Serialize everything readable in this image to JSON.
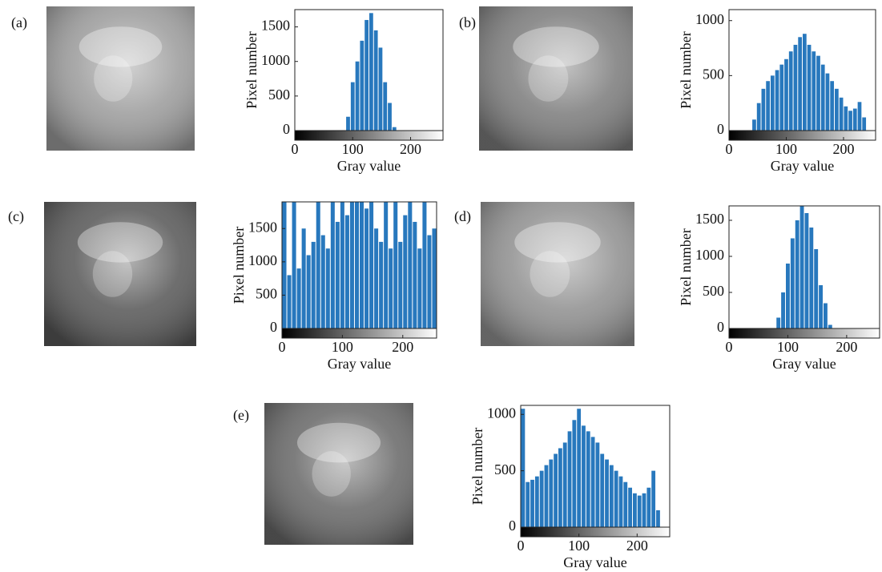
{
  "chart_data": [
    {
      "type": "histogram",
      "panel_label": "(a)",
      "xlabel": "Gray value",
      "ylabel": "Pixel number",
      "color": "#2878bd",
      "bins": [
        0,
        8,
        16,
        24,
        32,
        40,
        48,
        56,
        64,
        72,
        80,
        88,
        96,
        104,
        112,
        120,
        128,
        136,
        144,
        152,
        160,
        168,
        176,
        184,
        192,
        200,
        208,
        216,
        224,
        232,
        240,
        248,
        256
      ],
      "values": [
        0,
        0,
        0,
        0,
        0,
        0,
        0,
        0,
        0,
        0,
        0,
        200,
        700,
        1000,
        1300,
        1600,
        1700,
        1450,
        1200,
        700,
        400,
        50,
        0,
        0,
        0,
        0,
        0,
        0,
        0,
        0,
        0,
        0
      ],
      "xlim": [
        0,
        256
      ],
      "xticks": [
        0,
        100,
        200
      ],
      "ylim": [
        0,
        1750
      ],
      "yticks": [
        0,
        500,
        1000,
        1500
      ]
    },
    {
      "type": "histogram",
      "panel_label": "(b)",
      "xlabel": "Gray value",
      "ylabel": "Pixel number",
      "color": "#2878bd",
      "bins": [
        0,
        8,
        16,
        24,
        32,
        40,
        48,
        56,
        64,
        72,
        80,
        88,
        96,
        104,
        112,
        120,
        128,
        136,
        144,
        152,
        160,
        168,
        176,
        184,
        192,
        200,
        208,
        216,
        224,
        232,
        240,
        248,
        256
      ],
      "values": [
        0,
        0,
        0,
        0,
        0,
        100,
        250,
        380,
        450,
        500,
        550,
        600,
        650,
        720,
        780,
        850,
        880,
        780,
        720,
        680,
        600,
        520,
        450,
        380,
        300,
        220,
        180,
        200,
        260,
        120,
        0,
        0
      ],
      "xlim": [
        0,
        256
      ],
      "xticks": [
        0,
        100,
        200
      ],
      "ylim": [
        0,
        1100
      ],
      "yticks": [
        0,
        500,
        1000
      ]
    },
    {
      "type": "histogram",
      "panel_label": "(c)",
      "xlabel": "Gray value",
      "ylabel": "Pixel number",
      "color": "#2878bd",
      "bins": [
        0,
        8,
        16,
        24,
        32,
        40,
        48,
        56,
        64,
        72,
        80,
        88,
        96,
        104,
        112,
        120,
        128,
        136,
        144,
        152,
        160,
        168,
        176,
        184,
        192,
        200,
        208,
        216,
        224,
        232,
        240,
        248,
        256
      ],
      "values": [
        1900,
        800,
        1900,
        900,
        1500,
        1100,
        1300,
        1900,
        1400,
        1200,
        1900,
        1600,
        1900,
        1700,
        1900,
        1900,
        1900,
        1800,
        1900,
        1500,
        1300,
        1900,
        1200,
        1900,
        1300,
        1700,
        1900,
        1600,
        1200,
        1900,
        1400,
        1500
      ],
      "xlim": [
        0,
        256
      ],
      "xticks": [
        0,
        100,
        200
      ],
      "ylim": [
        0,
        1900
      ],
      "yticks": [
        0,
        500,
        1000,
        1500
      ]
    },
    {
      "type": "histogram",
      "panel_label": "(d)",
      "xlabel": "Gray value",
      "ylabel": "Pixel number",
      "color": "#2878bd",
      "bins": [
        0,
        8,
        16,
        24,
        32,
        40,
        48,
        56,
        64,
        72,
        80,
        88,
        96,
        104,
        112,
        120,
        128,
        136,
        144,
        152,
        160,
        168,
        176,
        184,
        192,
        200,
        208,
        216,
        224,
        232,
        240,
        248,
        256
      ],
      "values": [
        0,
        0,
        0,
        0,
        0,
        0,
        0,
        0,
        0,
        0,
        150,
        500,
        900,
        1250,
        1500,
        1700,
        1600,
        1400,
        1100,
        600,
        350,
        50,
        0,
        0,
        0,
        0,
        0,
        0,
        0,
        0,
        0,
        0
      ],
      "xlim": [
        0,
        256
      ],
      "xticks": [
        0,
        100,
        200
      ],
      "ylim": [
        0,
        1700
      ],
      "yticks": [
        0,
        500,
        1000,
        1500
      ]
    },
    {
      "type": "histogram",
      "panel_label": "(e)",
      "xlabel": "Gray value",
      "ylabel": "Pixel number",
      "color": "#2878bd",
      "bins": [
        0,
        8,
        16,
        24,
        32,
        40,
        48,
        56,
        64,
        72,
        80,
        88,
        96,
        104,
        112,
        120,
        128,
        136,
        144,
        152,
        160,
        168,
        176,
        184,
        192,
        200,
        208,
        216,
        224,
        232,
        240,
        248,
        256
      ],
      "values": [
        1050,
        400,
        420,
        450,
        500,
        550,
        600,
        650,
        700,
        750,
        850,
        950,
        1050,
        900,
        850,
        800,
        750,
        650,
        600,
        550,
        500,
        450,
        400,
        350,
        300,
        280,
        300,
        350,
        500,
        150,
        0,
        0
      ],
      "xlim": [
        0,
        256
      ],
      "xticks": [
        0,
        100,
        200
      ],
      "ylim": [
        0,
        1080
      ],
      "yticks": [
        0,
        500,
        1000
      ]
    }
  ]
}
